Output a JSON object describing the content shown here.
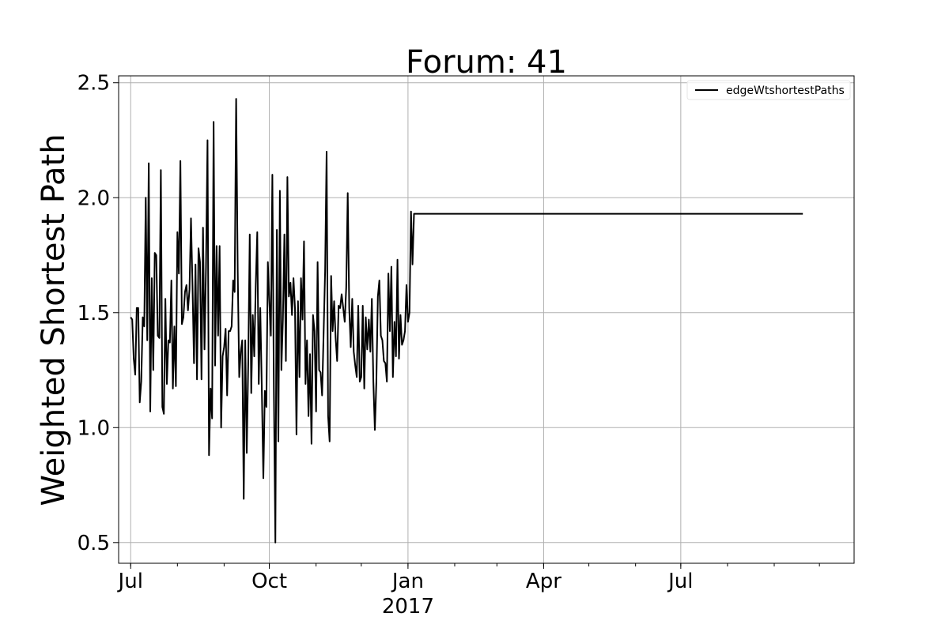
{
  "chart_data": {
    "type": "line",
    "title": "Forum: 41",
    "xlabel": "",
    "ylabel": "Weighted Shortest Path",
    "ylim": [
      0.41,
      2.53
    ],
    "xlim": [
      "2016-06-23",
      "2017-10-24"
    ],
    "y_ticks": [
      "0.5",
      "1.0",
      "1.5",
      "2.0",
      "2.5"
    ],
    "x_ticks": [
      {
        "date": "2016-07-01",
        "label": "Jul",
        "sub": ""
      },
      {
        "date": "2016-10-01",
        "label": "Oct",
        "sub": ""
      },
      {
        "date": "2017-01-01",
        "label": "Jan",
        "sub": "2017"
      },
      {
        "date": "2017-04-01",
        "label": "Apr",
        "sub": ""
      },
      {
        "date": "2017-07-01",
        "label": "Jul",
        "sub": ""
      }
    ],
    "grid": true,
    "legend_position": "top-right",
    "series": [
      {
        "name": "edgeWtshortestPaths",
        "color": "#000000",
        "x": [
          "2016-07-01",
          "2016-07-02",
          "2016-07-03",
          "2016-07-04",
          "2016-07-05",
          "2016-07-06",
          "2016-07-07",
          "2016-07-08",
          "2016-07-09",
          "2016-07-10",
          "2016-07-11",
          "2016-07-12",
          "2016-07-13",
          "2016-07-14",
          "2016-07-15",
          "2016-07-16",
          "2016-07-17",
          "2016-07-18",
          "2016-07-19",
          "2016-07-20",
          "2016-07-21",
          "2016-07-22",
          "2016-07-23",
          "2016-07-24",
          "2016-07-25",
          "2016-07-26",
          "2016-07-27",
          "2016-07-28",
          "2016-07-29",
          "2016-07-30",
          "2016-07-31",
          "2016-08-01",
          "2016-08-02",
          "2016-08-03",
          "2016-08-04",
          "2016-08-05",
          "2016-08-06",
          "2016-08-07",
          "2016-08-08",
          "2016-08-09",
          "2016-08-10",
          "2016-08-11",
          "2016-08-12",
          "2016-08-13",
          "2016-08-14",
          "2016-08-15",
          "2016-08-16",
          "2016-08-17",
          "2016-08-18",
          "2016-08-19",
          "2016-08-20",
          "2016-08-21",
          "2016-08-22",
          "2016-08-23",
          "2016-08-24",
          "2016-08-25",
          "2016-08-26",
          "2016-08-27",
          "2016-08-28",
          "2016-08-29",
          "2016-08-30",
          "2016-08-31",
          "2016-09-01",
          "2016-09-02",
          "2016-09-03",
          "2016-09-04",
          "2016-09-05",
          "2016-09-06",
          "2016-09-07",
          "2016-09-08",
          "2016-09-09",
          "2016-09-10",
          "2016-09-11",
          "2016-09-12",
          "2016-09-13",
          "2016-09-14",
          "2016-09-15",
          "2016-09-16",
          "2016-09-17",
          "2016-09-18",
          "2016-09-19",
          "2016-09-20",
          "2016-09-21",
          "2016-09-22",
          "2016-09-23",
          "2016-09-24",
          "2016-09-25",
          "2016-09-26",
          "2016-09-27",
          "2016-09-28",
          "2016-09-29",
          "2016-09-30",
          "2016-10-01",
          "2016-10-02",
          "2016-10-03",
          "2016-10-04",
          "2016-10-05",
          "2016-10-06",
          "2016-10-07",
          "2016-10-08",
          "2016-10-09",
          "2016-10-10",
          "2016-10-11",
          "2016-10-12",
          "2016-10-13",
          "2016-10-14",
          "2016-10-15",
          "2016-10-16",
          "2016-10-17",
          "2016-10-18",
          "2016-10-19",
          "2016-10-20",
          "2016-10-21",
          "2016-10-22",
          "2016-10-23",
          "2016-10-24",
          "2016-10-25",
          "2016-10-26",
          "2016-10-27",
          "2016-10-28",
          "2016-10-29",
          "2016-10-30",
          "2016-10-31",
          "2016-11-01",
          "2016-11-02",
          "2016-11-03",
          "2016-11-04",
          "2016-11-05",
          "2016-11-06",
          "2016-11-07",
          "2016-11-08",
          "2016-11-09",
          "2016-11-10",
          "2016-11-11",
          "2016-11-12",
          "2016-11-13",
          "2016-11-14",
          "2016-11-15",
          "2016-11-16",
          "2016-11-17",
          "2016-11-18",
          "2016-11-19",
          "2016-11-20",
          "2016-11-21",
          "2016-11-22",
          "2016-11-23",
          "2016-11-24",
          "2016-11-25",
          "2016-11-26",
          "2016-11-27",
          "2016-11-28",
          "2016-11-29",
          "2016-11-30",
          "2016-12-01",
          "2016-12-02",
          "2016-12-03",
          "2016-12-04",
          "2016-12-05",
          "2016-12-06",
          "2016-12-07",
          "2016-12-08",
          "2016-12-09",
          "2016-12-10",
          "2016-12-11",
          "2016-12-12",
          "2016-12-13",
          "2016-12-14",
          "2016-12-15",
          "2016-12-16",
          "2016-12-17",
          "2016-12-18",
          "2016-12-19",
          "2016-12-20",
          "2016-12-21",
          "2016-12-22",
          "2016-12-23",
          "2016-12-24",
          "2016-12-25",
          "2016-12-26",
          "2016-12-27",
          "2016-12-28",
          "2016-12-29",
          "2016-12-30",
          "2016-12-31",
          "2017-01-01",
          "2017-01-02",
          "2017-01-03",
          "2017-01-04",
          "2017-01-05",
          "2017-01-06",
          "2017-01-07",
          "2017-01-08",
          "2017-01-09",
          "2017-01-10",
          "2017-01-11",
          "2017-01-12",
          "2017-01-13",
          "2017-01-14",
          "2017-01-15",
          "2017-01-16",
          "2017-01-17",
          "2017-01-18",
          "2017-01-19",
          "2017-01-20",
          "2017-01-21",
          "2017-01-22",
          "2017-01-23",
          "2017-01-24",
          "2017-01-25",
          "2017-01-26",
          "2017-01-27",
          "2017-01-28",
          "2017-01-29",
          "2017-01-30",
          "2017-01-31",
          "2017-02-01",
          "2017-02-02",
          "2017-02-03",
          "2017-09-20"
        ],
        "y": [
          1.48,
          1.47,
          1.3,
          1.23,
          1.52,
          1.52,
          1.11,
          1.2,
          1.48,
          1.44,
          2.0,
          1.38,
          2.15,
          1.07,
          1.65,
          1.25,
          1.76,
          1.75,
          1.4,
          1.39,
          2.12,
          1.09,
          1.06,
          1.56,
          1.19,
          1.38,
          1.37,
          1.64,
          1.17,
          1.44,
          1.18,
          1.85,
          1.67,
          2.16,
          1.45,
          1.48,
          1.59,
          1.62,
          1.51,
          1.6,
          1.91,
          1.62,
          1.28,
          1.71,
          1.21,
          1.78,
          1.72,
          1.21,
          1.87,
          1.34,
          1.7,
          2.25,
          0.88,
          1.17,
          1.04,
          2.33,
          1.27,
          1.79,
          1.4,
          1.79,
          1.0,
          1.31,
          1.35,
          1.43,
          1.14,
          1.42,
          1.42,
          1.44,
          1.64,
          1.59,
          2.43,
          1.68,
          1.22,
          1.33,
          1.38,
          0.69,
          1.38,
          0.89,
          1.28,
          1.84,
          1.15,
          1.49,
          1.31,
          1.62,
          1.85,
          1.19,
          1.52,
          1.18,
          0.78,
          1.16,
          1.09,
          1.72,
          1.55,
          1.4,
          2.1,
          1.17,
          0.5,
          1.86,
          0.94,
          2.03,
          1.25,
          1.47,
          1.84,
          1.29,
          2.09,
          1.57,
          1.63,
          1.49,
          1.65,
          1.52,
          0.97,
          1.55,
          1.22,
          1.65,
          1.47,
          1.81,
          1.19,
          1.38,
          1.05,
          1.32,
          0.93,
          1.49,
          1.42,
          1.07,
          1.72,
          1.25,
          1.24,
          1.14,
          1.41,
          1.68,
          2.2,
          1.05,
          0.94,
          1.66,
          1.42,
          1.55,
          1.39,
          1.29,
          1.53,
          1.52,
          1.58,
          1.52,
          1.46,
          1.61,
          2.02,
          1.52,
          1.35,
          1.56,
          1.33,
          1.27,
          1.22,
          1.53,
          1.2,
          1.22,
          1.53,
          1.17,
          1.48,
          1.34,
          1.47,
          1.33,
          1.56,
          1.2,
          0.99,
          1.2,
          1.57,
          1.64,
          1.4,
          1.38,
          1.29,
          1.28,
          1.2,
          1.67,
          1.42,
          1.7,
          1.22,
          1.46,
          1.31,
          1.73,
          1.3,
          1.49,
          1.36,
          1.38,
          1.42,
          1.62,
          1.46,
          1.5,
          1.94,
          1.71,
          1.93,
          1.93,
          1.93,
          1.93,
          1.93,
          1.93,
          1.93,
          1.93,
          1.93,
          1.93,
          1.93,
          1.93,
          1.93,
          1.93,
          1.93,
          1.93,
          1.93,
          1.93,
          1.93,
          1.93,
          1.93,
          1.93,
          1.93,
          1.93,
          1.93,
          1.93,
          1.93,
          1.93,
          1.93,
          1.93,
          1.93
        ]
      }
    ]
  }
}
